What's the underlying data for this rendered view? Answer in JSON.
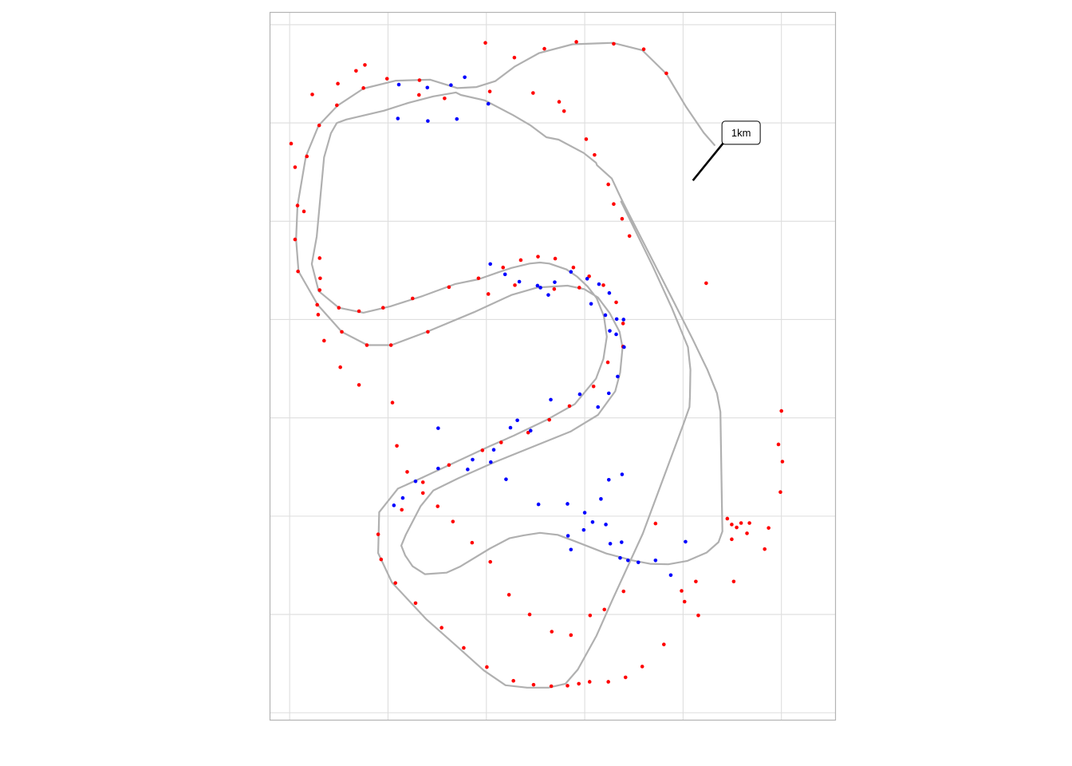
{
  "chart_data": {
    "type": "scatter",
    "title": "",
    "xlabel": "",
    "ylabel": "",
    "xlim": [
      0,
      1150
    ],
    "ylim": [
      -1440,
      0
    ],
    "grid": true,
    "x_gridlines": [
      40,
      240,
      440,
      640,
      840,
      1040
    ],
    "y_gridlines": [
      -25,
      -225,
      -425,
      -625,
      -825,
      -1025,
      -1225,
      -1425
    ],
    "track": [
      [
        904,
        -270
      ],
      [
        882,
        -245
      ],
      [
        846,
        -192
      ],
      [
        806,
        -125
      ],
      [
        757,
        -77
      ],
      [
        697,
        -62
      ],
      [
        615,
        -65
      ],
      [
        547,
        -83
      ],
      [
        498,
        -110
      ],
      [
        458,
        -140
      ],
      [
        420,
        -152
      ],
      [
        381,
        -154
      ],
      [
        326,
        -137
      ],
      [
        256,
        -139
      ],
      [
        190,
        -155
      ],
      [
        137,
        -190
      ],
      [
        99,
        -230
      ],
      [
        73,
        -293
      ],
      [
        56,
        -393
      ],
      [
        53,
        -462
      ],
      [
        58,
        -527
      ],
      [
        97,
        -595
      ],
      [
        146,
        -650
      ],
      [
        198,
        -677
      ],
      [
        247,
        -677
      ],
      [
        319,
        -650
      ],
      [
        415,
        -610
      ],
      [
        491,
        -575
      ],
      [
        543,
        -560
      ],
      [
        605,
        -556
      ],
      [
        639,
        -563
      ],
      [
        667,
        -580
      ],
      [
        691,
        -612
      ],
      [
        711,
        -650
      ],
      [
        717,
        -682
      ],
      [
        712,
        -733
      ],
      [
        702,
        -771
      ],
      [
        667,
        -819
      ],
      [
        611,
        -853
      ],
      [
        457,
        -915
      ],
      [
        383,
        -948
      ],
      [
        332,
        -973
      ],
      [
        306,
        -1005
      ],
      [
        276,
        -1063
      ],
      [
        267,
        -1085
      ],
      [
        275,
        -1105
      ],
      [
        290,
        -1127
      ],
      [
        315,
        -1143
      ],
      [
        359,
        -1140
      ],
      [
        386,
        -1128
      ],
      [
        447,
        -1091
      ],
      [
        487,
        -1070
      ],
      [
        516,
        -1064
      ],
      [
        549,
        -1059
      ],
      [
        585,
        -1063
      ],
      [
        620,
        -1076
      ],
      [
        684,
        -1101
      ],
      [
        737,
        -1115
      ],
      [
        773,
        -1122
      ],
      [
        810,
        -1123
      ],
      [
        849,
        -1116
      ],
      [
        888,
        -1099
      ],
      [
        912,
        -1078
      ],
      [
        920,
        -1056
      ],
      [
        919,
        -1004
      ],
      [
        916,
        -813
      ],
      [
        909,
        -775
      ],
      [
        889,
        -726
      ],
      [
        883,
        -714
      ],
      [
        860,
        -666
      ],
      [
        816,
        -579
      ],
      [
        718,
        -387
      ],
      [
        711,
        -372
      ],
      [
        695,
        -338
      ],
      [
        665,
        -311
      ],
      [
        663,
        -306
      ],
      [
        638,
        -286
      ],
      [
        587,
        -259
      ],
      [
        562,
        -254
      ],
      [
        530,
        -230
      ],
      [
        494,
        -209
      ],
      [
        437,
        -179
      ],
      [
        388,
        -168
      ],
      [
        378,
        -163
      ],
      [
        332,
        -171
      ],
      [
        282,
        -184
      ],
      [
        232,
        -200
      ],
      [
        155,
        -218
      ],
      [
        136,
        -225
      ],
      [
        124,
        -246
      ],
      [
        110,
        -295
      ],
      [
        103,
        -370
      ],
      [
        95,
        -456
      ],
      [
        85,
        -512
      ],
      [
        99,
        -567
      ],
      [
        140,
        -601
      ],
      [
        190,
        -611
      ],
      [
        245,
        -598
      ],
      [
        311,
        -577
      ],
      [
        376,
        -553
      ],
      [
        424,
        -543
      ],
      [
        464,
        -529
      ],
      [
        491,
        -520
      ],
      [
        528,
        -511
      ],
      [
        549,
        -509
      ],
      [
        568,
        -511
      ],
      [
        603,
        -523
      ],
      [
        625,
        -538
      ],
      [
        646,
        -558
      ],
      [
        664,
        -581
      ],
      [
        679,
        -618
      ],
      [
        685,
        -660
      ],
      [
        678,
        -705
      ],
      [
        663,
        -745
      ],
      [
        620,
        -797
      ],
      [
        563,
        -829
      ],
      [
        496,
        -861
      ],
      [
        446,
        -883
      ],
      [
        309,
        -947
      ],
      [
        260,
        -969
      ],
      [
        222,
        -1017
      ],
      [
        220,
        -1100
      ],
      [
        248,
        -1160
      ],
      [
        318,
        -1235
      ],
      [
        387,
        -1296
      ],
      [
        435,
        -1339
      ],
      [
        479,
        -1369
      ],
      [
        523,
        -1374
      ],
      [
        566,
        -1374
      ],
      [
        601,
        -1366
      ],
      [
        626,
        -1337
      ],
      [
        664,
        -1268
      ],
      [
        696,
        -1196
      ],
      [
        758,
        -1061
      ],
      [
        841,
        -837
      ],
      [
        853,
        -803
      ],
      [
        854,
        -782
      ],
      [
        855,
        -727
      ],
      [
        850,
        -681
      ],
      [
        817,
        -601
      ],
      [
        778,
        -516
      ],
      [
        714,
        -385
      ]
    ],
    "markers_red": [
      [
        304,
        -138
      ],
      [
        438,
        -62
      ],
      [
        497,
        -92
      ],
      [
        558,
        -74
      ],
      [
        623,
        -60
      ],
      [
        699,
        -64
      ],
      [
        760,
        -75
      ],
      [
        806,
        -124
      ],
      [
        190,
        -154
      ],
      [
        136,
        -189
      ],
      [
        100,
        -230
      ],
      [
        75,
        -293
      ],
      [
        56,
        -393
      ],
      [
        51,
        -462
      ],
      [
        57,
        -527
      ],
      [
        96,
        -595
      ],
      [
        146,
        -650
      ],
      [
        197,
        -677
      ],
      [
        246,
        -677
      ],
      [
        321,
        -650
      ],
      [
        444,
        -573
      ],
      [
        498,
        -555
      ],
      [
        578,
        -563
      ],
      [
        629,
        -560
      ],
      [
        887,
        -551
      ],
      [
        1006,
        -1092
      ],
      [
        1014,
        -1049
      ],
      [
        1038,
        -976
      ],
      [
        1042,
        -914
      ],
      [
        1034,
        -879
      ],
      [
        1040,
        -811
      ],
      [
        943,
        -1158
      ],
      [
        939,
        -1072
      ],
      [
        939,
        -1042
      ],
      [
        949,
        -1048
      ],
      [
        958,
        -1039
      ],
      [
        970,
        -1060
      ],
      [
        975,
        -1039
      ],
      [
        930,
        -1030
      ],
      [
        866,
        -1158
      ],
      [
        837,
        -1177
      ],
      [
        719,
        -1178
      ],
      [
        680,
        -1215
      ],
      [
        651,
        -1227
      ],
      [
        612,
        -1267
      ],
      [
        573,
        -1260
      ],
      [
        528,
        -1225
      ],
      [
        486,
        -1185
      ],
      [
        448,
        -1118
      ],
      [
        411,
        -1079
      ],
      [
        372,
        -1036
      ],
      [
        341,
        -1005
      ],
      [
        311,
        -956
      ],
      [
        279,
        -935
      ],
      [
        258,
        -882
      ],
      [
        249,
        -794
      ],
      [
        181,
        -758
      ],
      [
        143,
        -722
      ],
      [
        110,
        -668
      ],
      [
        98,
        -615
      ],
      [
        102,
        -541
      ],
      [
        101,
        -500
      ],
      [
        69,
        -405
      ],
      [
        51,
        -315
      ],
      [
        43,
        -267
      ],
      [
        86,
        -167
      ],
      [
        138,
        -145
      ],
      [
        175,
        -119
      ],
      [
        193,
        -107
      ],
      [
        238,
        -135
      ],
      [
        303,
        -168
      ],
      [
        355,
        -175
      ],
      [
        447,
        -161
      ],
      [
        535,
        -164
      ],
      [
        588,
        -182
      ],
      [
        598,
        -201
      ],
      [
        643,
        -258
      ],
      [
        660,
        -290
      ],
      [
        688,
        -350
      ],
      [
        699,
        -390
      ],
      [
        716,
        -420
      ],
      [
        731,
        -455
      ],
      [
        784,
        -1040
      ],
      [
        843,
        -1199
      ],
      [
        871,
        -1227
      ],
      [
        801,
        -1286
      ],
      [
        757,
        -1331
      ],
      [
        723,
        -1353
      ],
      [
        688,
        -1362
      ],
      [
        650,
        -1362
      ],
      [
        628,
        -1366
      ],
      [
        605,
        -1370
      ],
      [
        572,
        -1371
      ],
      [
        536,
        -1368
      ],
      [
        495,
        -1360
      ],
      [
        441,
        -1332
      ],
      [
        394,
        -1293
      ],
      [
        349,
        -1252
      ],
      [
        296,
        -1202
      ],
      [
        255,
        -1161
      ],
      [
        226,
        -1113
      ],
      [
        220,
        -1062
      ],
      [
        268,
        -1012
      ],
      [
        311,
        -978
      ],
      [
        364,
        -921
      ],
      [
        432,
        -891
      ],
      [
        470,
        -875
      ],
      [
        525,
        -855
      ],
      [
        568,
        -829
      ],
      [
        609,
        -801
      ],
      [
        658,
        -761
      ],
      [
        687,
        -712
      ],
      [
        718,
        -680
      ],
      [
        718,
        -633
      ],
      [
        704,
        -590
      ],
      [
        678,
        -555
      ],
      [
        649,
        -537
      ],
      [
        617,
        -519
      ],
      [
        580,
        -501
      ],
      [
        545,
        -497
      ],
      [
        510,
        -504
      ],
      [
        474,
        -519
      ],
      [
        424,
        -541
      ],
      [
        364,
        -559
      ],
      [
        290,
        -582
      ],
      [
        230,
        -601
      ],
      [
        181,
        -608
      ],
      [
        140,
        -601
      ],
      [
        101,
        -565
      ]
    ],
    "markers_blue": [
      [
        262,
        -147
      ],
      [
        320,
        -153
      ],
      [
        368,
        -148
      ],
      [
        396,
        -132
      ],
      [
        260,
        -216
      ],
      [
        321,
        -221
      ],
      [
        380,
        -217
      ],
      [
        444,
        -186
      ],
      [
        448,
        -512
      ],
      [
        478,
        -533
      ],
      [
        507,
        -548
      ],
      [
        544,
        -556
      ],
      [
        566,
        -575
      ],
      [
        612,
        -1093
      ],
      [
        546,
        -1001
      ],
      [
        480,
        -950
      ],
      [
        412,
        -910
      ],
      [
        342,
        -846
      ],
      [
        606,
        -1065
      ],
      [
        656,
        -1037
      ],
      [
        673,
        -990
      ],
      [
        689,
        -951
      ],
      [
        716,
        -940
      ],
      [
        638,
        -1053
      ],
      [
        692,
        -1081
      ],
      [
        712,
        -1110
      ],
      [
        749,
        -1119
      ],
      [
        715,
        -1078
      ],
      [
        728,
        -1115
      ],
      [
        784,
        -1115
      ],
      [
        815,
        -1145
      ],
      [
        845,
        -1077
      ],
      [
        683,
        -1042
      ],
      [
        640,
        -1018
      ],
      [
        605,
        -1000
      ],
      [
        645,
        -542
      ],
      [
        669,
        -553
      ],
      [
        690,
        -571
      ],
      [
        653,
        -593
      ],
      [
        682,
        -616
      ],
      [
        691,
        -648
      ],
      [
        705,
        -624
      ],
      [
        719,
        -625
      ],
      [
        704,
        -655
      ],
      [
        720,
        -681
      ],
      [
        707,
        -741
      ],
      [
        689,
        -775
      ],
      [
        667,
        -803
      ],
      [
        630,
        -777
      ],
      [
        571,
        -788
      ],
      [
        530,
        -851
      ],
      [
        503,
        -830
      ],
      [
        489,
        -845
      ],
      [
        455,
        -890
      ],
      [
        449,
        -915
      ],
      [
        402,
        -930
      ],
      [
        342,
        -928
      ],
      [
        296,
        -954
      ],
      [
        270,
        -988
      ],
      [
        252,
        -1003
      ],
      [
        612,
        -528
      ],
      [
        579,
        -549
      ],
      [
        550,
        -560
      ]
    ],
    "annotation": {
      "text": "1km",
      "point": [
        860,
        -342
      ],
      "label_pos": [
        958,
        -245
      ]
    }
  }
}
